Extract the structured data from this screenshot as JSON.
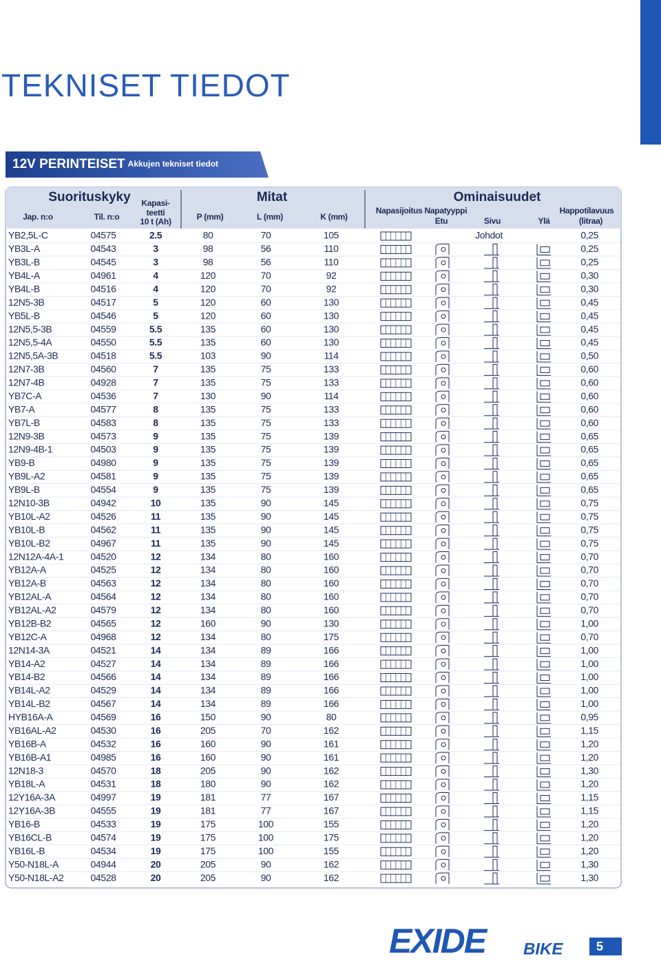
{
  "header": {
    "title": "TEKNISET TIEDOT",
    "banner_title": "12V PERINTEISET",
    "banner_subtitle": "Akkujen tekniset tiedot"
  },
  "table": {
    "group_headers": [
      "Suorituskyky",
      "Mitat",
      "Ominaisuudet"
    ],
    "col_headers": {
      "jap": "Jap. n:o",
      "til": "Til. n:o",
      "kap": [
        "Kapasi-",
        "teetti",
        "10 t (Ah)"
      ],
      "p": "P (mm)",
      "l": "L (mm)",
      "k": "K (mm)",
      "napa": "Napasijoitus Napatyyppi",
      "etu": "Etu",
      "sivu": "Sivu",
      "yla": "Ylä",
      "happo": [
        "Happotilavuus",
        "(litraa)"
      ]
    },
    "rows": [
      [
        "YB2,5L-C",
        "04575",
        "2.5",
        "80",
        "70",
        "105",
        "0,25",
        "Johdot"
      ],
      [
        "YB3L-A",
        "04543",
        "3",
        "98",
        "56",
        "110",
        "0,25"
      ],
      [
        "YB3L-B",
        "04545",
        "3",
        "98",
        "56",
        "110",
        "0,25"
      ],
      [
        "YB4L-A",
        "04961",
        "4",
        "120",
        "70",
        "92",
        "0,30"
      ],
      [
        "YB4L-B",
        "04516",
        "4",
        "120",
        "70",
        "92",
        "0,30"
      ],
      [
        "12N5-3B",
        "04517",
        "5",
        "120",
        "60",
        "130",
        "0,45"
      ],
      [
        "YB5L-B",
        "04546",
        "5",
        "120",
        "60",
        "130",
        "0,45"
      ],
      [
        "12N5,5-3B",
        "04559",
        "5.5",
        "135",
        "60",
        "130",
        "0,45"
      ],
      [
        "12N5,5-4A",
        "04550",
        "5.5",
        "135",
        "60",
        "130",
        "0,45"
      ],
      [
        "12N5,5A-3B",
        "04518",
        "5.5",
        "103",
        "90",
        "114",
        "0,50"
      ],
      [
        "12N7-3B",
        "04560",
        "7",
        "135",
        "75",
        "133",
        "0,60"
      ],
      [
        "12N7-4B",
        "04928",
        "7",
        "135",
        "75",
        "133",
        "0,60"
      ],
      [
        "YB7C-A",
        "04536",
        "7",
        "130",
        "90",
        "114",
        "0,60"
      ],
      [
        "YB7-A",
        "04577",
        "8",
        "135",
        "75",
        "133",
        "0,60"
      ],
      [
        "YB7L-B",
        "04583",
        "8",
        "135",
        "75",
        "133",
        "0,60"
      ],
      [
        "12N9-3B",
        "04573",
        "9",
        "135",
        "75",
        "139",
        "0,65"
      ],
      [
        "12N9-4B-1",
        "04503",
        "9",
        "135",
        "75",
        "139",
        "0,65"
      ],
      [
        "YB9-B",
        "04980",
        "9",
        "135",
        "75",
        "139",
        "0,65"
      ],
      [
        "YB9L-A2",
        "04581",
        "9",
        "135",
        "75",
        "139",
        "0,65"
      ],
      [
        "YB9L-B",
        "04554",
        "9",
        "135",
        "75",
        "139",
        "0,65"
      ],
      [
        "12N10-3B",
        "04942",
        "10",
        "135",
        "90",
        "145",
        "0,75"
      ],
      [
        "YB10L-A2",
        "04526",
        "11",
        "135",
        "90",
        "145",
        "0,75"
      ],
      [
        "YB10L-B",
        "04562",
        "11",
        "135",
        "90",
        "145",
        "0,75"
      ],
      [
        "YB10L-B2",
        "04967",
        "11",
        "135",
        "90",
        "145",
        "0,75"
      ],
      [
        "12N12A-4A-1",
        "04520",
        "12",
        "134",
        "80",
        "160",
        "0,70"
      ],
      [
        "YB12A-A",
        "04525",
        "12",
        "134",
        "80",
        "160",
        "0,70"
      ],
      [
        "YB12A-B",
        "04563",
        "12",
        "134",
        "80",
        "160",
        "0,70"
      ],
      [
        "YB12AL-A",
        "04564",
        "12",
        "134",
        "80",
        "160",
        "0,70"
      ],
      [
        "YB12AL-A2",
        "04579",
        "12",
        "134",
        "80",
        "160",
        "0,70"
      ],
      [
        "YB12B-B2",
        "04565",
        "12",
        "160",
        "90",
        "130",
        "1,00"
      ],
      [
        "YB12C-A",
        "04968",
        "12",
        "134",
        "80",
        "175",
        "0,70"
      ],
      [
        "12N14-3A",
        "04521",
        "14",
        "134",
        "89",
        "166",
        "1,00"
      ],
      [
        "YB14-A2",
        "04527",
        "14",
        "134",
        "89",
        "166",
        "1,00"
      ],
      [
        "YB14-B2",
        "04566",
        "14",
        "134",
        "89",
        "166",
        "1,00"
      ],
      [
        "YB14L-A2",
        "04529",
        "14",
        "134",
        "89",
        "166",
        "1,00"
      ],
      [
        "YB14L-B2",
        "04567",
        "14",
        "134",
        "89",
        "166",
        "1,00"
      ],
      [
        "HYB16A-A",
        "04569",
        "16",
        "150",
        "90",
        "80",
        "0,95"
      ],
      [
        "YB16AL-A2",
        "04530",
        "16",
        "205",
        "70",
        "162",
        "1,15"
      ],
      [
        "YB16B-A",
        "04532",
        "16",
        "160",
        "90",
        "161",
        "1,20"
      ],
      [
        "YB16B-A1",
        "04985",
        "16",
        "160",
        "90",
        "161",
        "1,20"
      ],
      [
        "12N18-3",
        "04570",
        "18",
        "205",
        "90",
        "162",
        "1,30"
      ],
      [
        "YB18L-A",
        "04531",
        "18",
        "180",
        "90",
        "162",
        "1,20"
      ],
      [
        "12Y16A-3A",
        "04997",
        "19",
        "181",
        "77",
        "167",
        "1,15"
      ],
      [
        "12Y16A-3B",
        "04555",
        "19",
        "181",
        "77",
        "167",
        "1,15"
      ],
      [
        "YB16-B",
        "04533",
        "19",
        "175",
        "100",
        "155",
        "1,20"
      ],
      [
        "YB16CL-B",
        "04574",
        "19",
        "175",
        "100",
        "175",
        "1,20"
      ],
      [
        "YB16L-B",
        "04534",
        "19",
        "175",
        "100",
        "155",
        "1,20"
      ],
      [
        "Y50-N18L-A",
        "04944",
        "20",
        "205",
        "90",
        "162",
        "1,30"
      ],
      [
        "Y50-N18L-A2",
        "04528",
        "20",
        "205",
        "90",
        "162",
        "1,30"
      ]
    ]
  },
  "footer": {
    "brand": "EXIDE",
    "brand_sub": "BIKE",
    "page": "5"
  }
}
